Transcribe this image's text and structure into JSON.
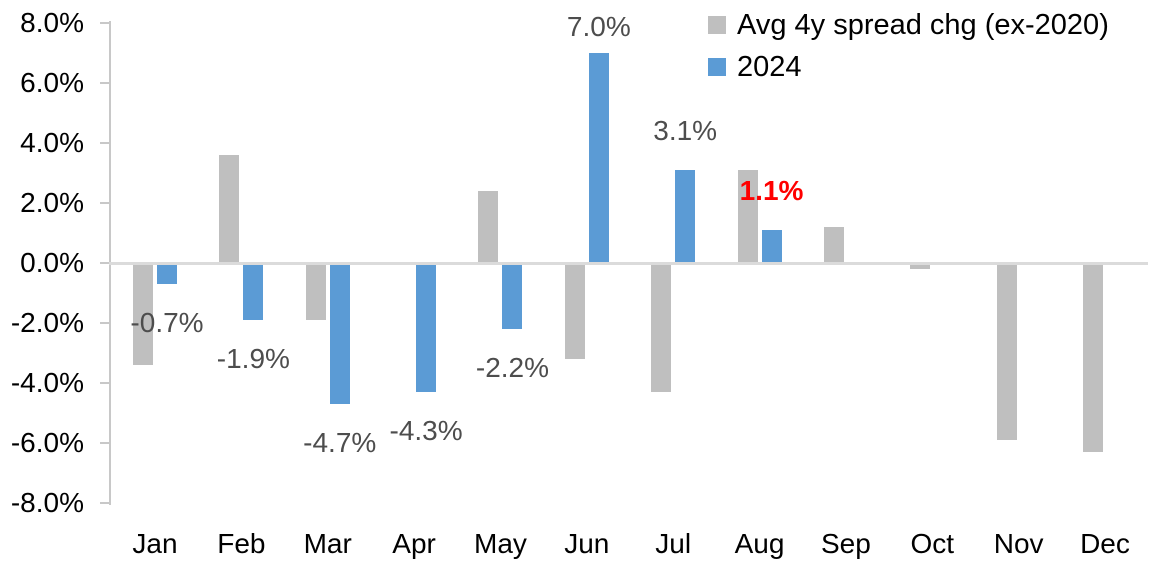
{
  "chart_data": {
    "type": "bar",
    "title": "",
    "categories": [
      "Jan",
      "Feb",
      "Mar",
      "Apr",
      "May",
      "Jun",
      "Jul",
      "Aug",
      "Sep",
      "Oct",
      "Nov",
      "Dec"
    ],
    "series": [
      {
        "name": "Avg 4y spread chg (ex-2020)",
        "color": "#BFBFBF",
        "values": [
          -3.4,
          3.6,
          -1.9,
          0,
          2.4,
          -3.2,
          -4.3,
          3.1,
          1.2,
          -0.2,
          -5.9,
          -6.3
        ]
      },
      {
        "name": "2024",
        "color": "#5B9BD5",
        "values": [
          -0.7,
          -1.9,
          -4.7,
          -4.3,
          -2.2,
          7.0,
          3.1,
          1.1,
          null,
          null,
          null,
          null
        ]
      }
    ],
    "data_labels": {
      "series": "2024",
      "labels": [
        "-0.7%",
        "-1.9%",
        "-4.7%",
        "-4.3%",
        "-2.2%",
        "7.0%",
        "3.1%",
        "1.1%",
        null,
        null,
        null,
        null
      ],
      "colors": [
        "#4D4D4D",
        "#4D4D4D",
        "#4D4D4D",
        "#4D4D4D",
        "#4D4D4D",
        "#4D4D4D",
        "#4D4D4D",
        "#FF0000",
        null,
        null,
        null,
        null
      ],
      "bold": [
        false,
        false,
        false,
        false,
        false,
        false,
        false,
        true,
        false,
        false,
        false,
        false
      ]
    },
    "ylim": [
      -8,
      8
    ],
    "ytick_labels": [
      "8.0%",
      "6.0%",
      "4.0%",
      "2.0%",
      "0.0%",
      "-2.0%",
      "-4.0%",
      "-6.0%",
      "-8.0%"
    ],
    "grid": false,
    "legend": {
      "position": "top-right",
      "entries": [
        {
          "label": "Avg 4y spread chg (ex-2020)",
          "color": "#BFBFBF"
        },
        {
          "label": "2024",
          "color": "#5B9BD5"
        }
      ]
    }
  },
  "colors": {
    "background": "#FFFFFF",
    "axis_line": "#C8C8C8",
    "zero_line": "#DBDBDB",
    "tick_text": "#000000",
    "data_label_default": "#4D4D4D",
    "data_label_highlight": "#FF0000",
    "series_gray": "#BFBFBF",
    "series_blue": "#5B9BD5"
  }
}
